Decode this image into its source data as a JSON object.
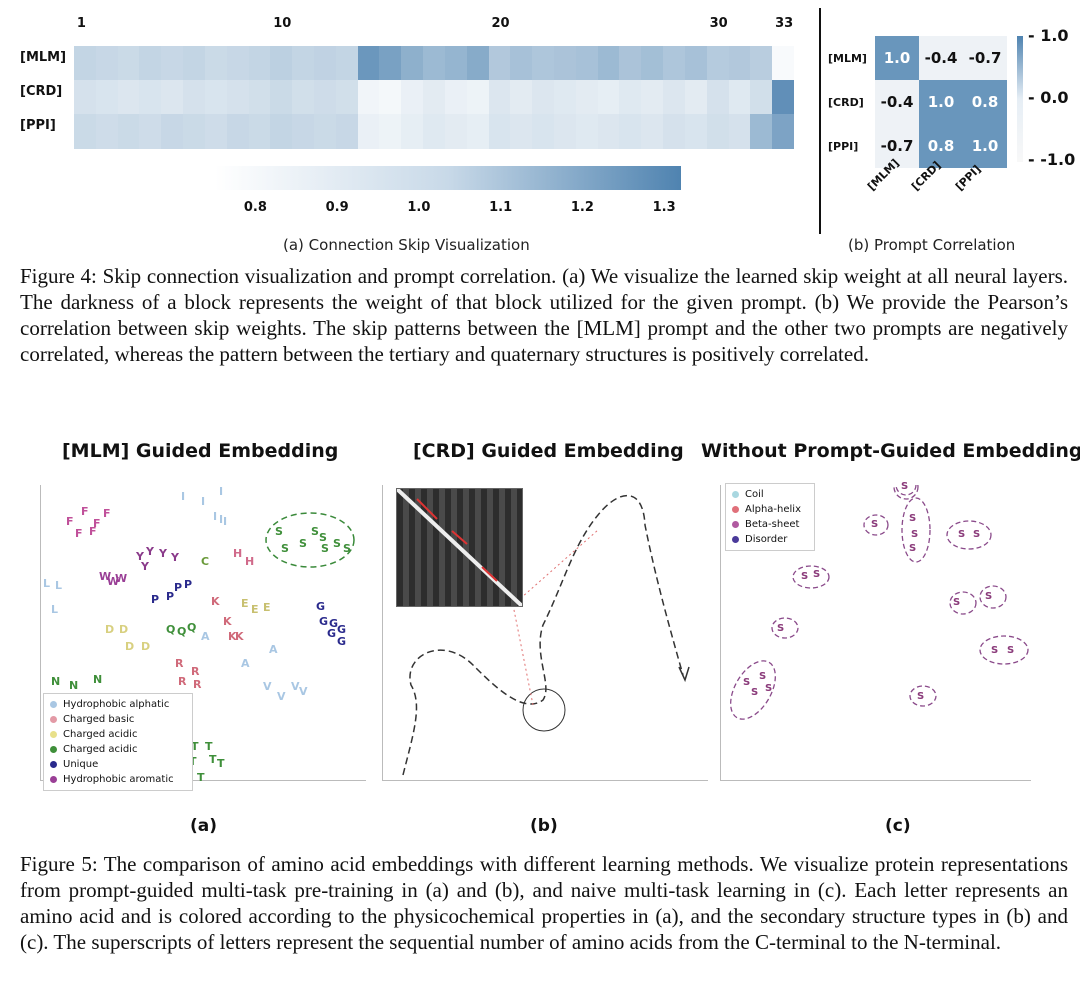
{
  "figure4": {
    "heatmap": {
      "layer_ticks": [
        "1",
        "10",
        "20",
        "30",
        "33"
      ],
      "row_labels": [
        "[MLM]",
        "[CRD]",
        "[PPI]"
      ],
      "colorbar_ticks": [
        "0.8",
        "0.9",
        "1.0",
        "1.1",
        "1.2",
        "1.3"
      ],
      "subcaption": "(a) Connection Skip Visualization"
    },
    "correlation": {
      "row_labels": [
        "[MLM]",
        "[CRD]",
        "[PPI]"
      ],
      "col_labels": [
        "[MLM]",
        "[CRD]",
        "[PPI]"
      ],
      "values_text": [
        [
          "1.0",
          "-0.4",
          "-0.7"
        ],
        [
          "-0.4",
          "1.0",
          "0.8"
        ],
        [
          "-0.7",
          "0.8",
          "1.0"
        ]
      ],
      "colorbar_ticks": [
        "1.0",
        "0.0",
        "-1.0"
      ],
      "subcaption": "(b) Prompt Correlation"
    },
    "caption": "Figure 4: Skip connection visualization and prompt correlation. (a) We visualize the learned skip weight at all neural layers. The darkness of a block represents the weight of that block utilized for the given prompt. (b) We provide the Pearson’s correlation between skip weights. The skip patterns between the [MLM] prompt and the other two prompts are negatively correlated, whereas the pattern between the tertiary and quaternary structures is positively correlated."
  },
  "figure5": {
    "panel_a": {
      "title": "[MLM] Guided Embedding",
      "label": "(a)",
      "legend": [
        "Hydrophobic alphatic",
        "Charged basic",
        "Charged acidic",
        "Charged acidic",
        "Unique",
        "Hydrophobic aromatic"
      ],
      "legend_colors": [
        "#a9c7e3",
        "#e39aa6",
        "#e8e08a",
        "#3f8f3a",
        "#2a2a8c",
        "#9a3f96"
      ]
    },
    "panel_b": {
      "title": "[CRD] Guided Embedding",
      "label": "(b)"
    },
    "panel_c": {
      "title": "Without Prompt-Guided Embedding",
      "label": "(c)",
      "legend": [
        "Coil",
        "Alpha-helix",
        "Beta-sheet",
        "Disorder"
      ],
      "legend_colors": [
        "#a9d7e0",
        "#e0707a",
        "#b05aa0",
        "#4a3a9a"
      ]
    },
    "caption": "Figure 5: The comparison of amino acid embeddings with different learning methods. We visualize protein representations from prompt-guided multi-task pre-training in (a) and (b), and naive multi-task learning in (c). Each letter represents an amino acid and is colored according to the physicochemical properties in (a), and the secondary structure types in (b) and (c). The superscripts of letters represent the sequential number of amino acids from the C-terminal to the N-terminal."
  },
  "chart_data": [
    {
      "type": "heatmap",
      "title": "(a) Connection Skip Visualization",
      "rows": [
        "[MLM]",
        "[CRD]",
        "[PPI]"
      ],
      "columns": [
        "1",
        "2",
        "3",
        "4",
        "5",
        "6",
        "7",
        "8",
        "9",
        "10",
        "11",
        "12",
        "13",
        "14",
        "15",
        "16",
        "17",
        "18",
        "19",
        "20",
        "21",
        "22",
        "23",
        "24",
        "25",
        "26",
        "27",
        "28",
        "29",
        "30",
        "31",
        "32",
        "33"
      ],
      "values": [
        [
          0.97,
          0.96,
          0.95,
          0.97,
          0.96,
          0.97,
          0.95,
          0.96,
          0.97,
          0.99,
          0.97,
          0.98,
          0.97,
          1.22,
          1.18,
          1.12,
          1.08,
          1.1,
          1.14,
          1.02,
          1.05,
          1.03,
          1.04,
          1.05,
          1.08,
          1.04,
          1.06,
          1.03,
          1.05,
          1.01,
          1.02,
          1.0,
          0.82
        ],
        [
          0.92,
          0.91,
          0.9,
          0.91,
          0.9,
          0.92,
          0.91,
          0.92,
          0.93,
          0.95,
          0.93,
          0.94,
          0.93,
          0.84,
          0.83,
          0.86,
          0.88,
          0.86,
          0.85,
          0.9,
          0.88,
          0.9,
          0.89,
          0.88,
          0.87,
          0.89,
          0.88,
          0.9,
          0.88,
          0.92,
          0.89,
          0.93,
          1.25
        ],
        [
          0.95,
          0.94,
          0.95,
          0.94,
          0.96,
          0.95,
          0.94,
          0.96,
          0.95,
          0.97,
          0.96,
          0.95,
          0.96,
          0.86,
          0.85,
          0.87,
          0.89,
          0.88,
          0.87,
          0.91,
          0.9,
          0.91,
          0.9,
          0.89,
          0.9,
          0.91,
          0.9,
          0.92,
          0.91,
          0.93,
          0.92,
          1.08,
          1.17
        ]
      ],
      "vmin": 0.8,
      "vmax": 1.3
    },
    {
      "type": "heatmap",
      "title": "(b) Prompt Correlation",
      "rows": [
        "[MLM]",
        "[CRD]",
        "[PPI]"
      ],
      "columns": [
        "[MLM]",
        "[CRD]",
        "[PPI]"
      ],
      "values": [
        [
          1.0,
          -0.4,
          -0.7
        ],
        [
          -0.4,
          1.0,
          0.8
        ],
        [
          -0.7,
          0.8,
          1.0
        ]
      ],
      "vmin": -1.0,
      "vmax": 1.0
    }
  ]
}
